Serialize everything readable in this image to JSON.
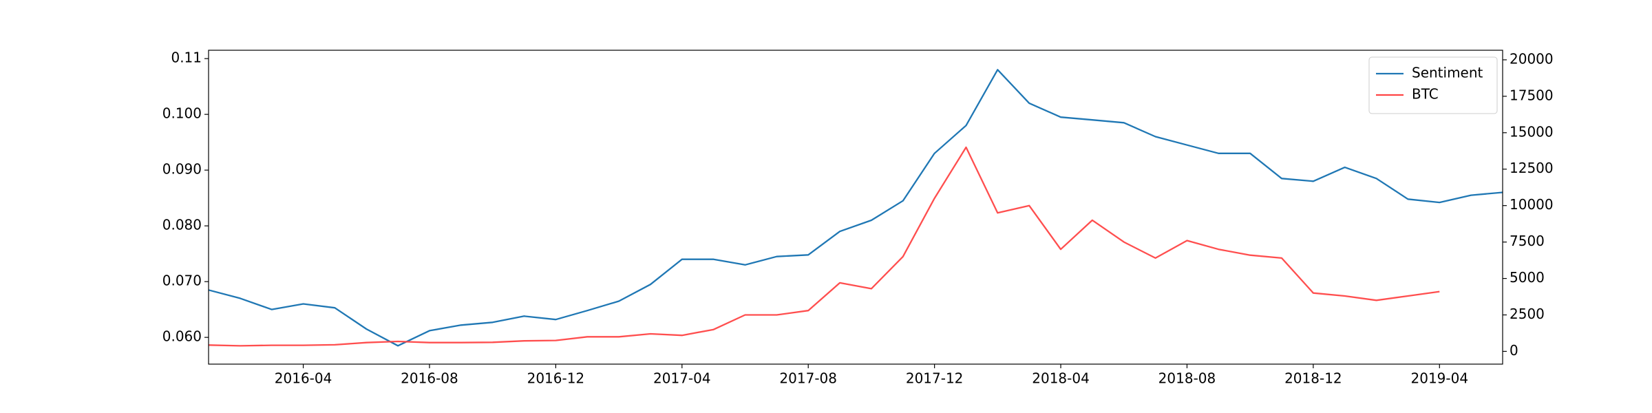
{
  "chart_data": {
    "type": "line",
    "x": [
      "2016-01",
      "2016-02",
      "2016-03",
      "2016-04",
      "2016-05",
      "2016-06",
      "2016-07",
      "2016-08",
      "2016-09",
      "2016-10",
      "2016-11",
      "2016-12",
      "2017-01",
      "2017-02",
      "2017-03",
      "2017-04",
      "2017-05",
      "2017-06",
      "2017-07",
      "2017-08",
      "2017-09",
      "2017-10",
      "2017-11",
      "2017-12",
      "2018-01",
      "2018-02",
      "2018-03",
      "2018-04",
      "2018-05",
      "2018-06",
      "2018-07",
      "2018-08",
      "2018-09",
      "2018-10",
      "2018-11",
      "2018-12",
      "2019-01",
      "2019-02",
      "2019-03",
      "2019-04",
      "2019-05",
      "2019-06"
    ],
    "series": [
      {
        "name": "Sentiment",
        "color": "#1f77b4",
        "axis": "y",
        "values": [
          0.0685,
          0.067,
          0.065,
          0.066,
          0.0653,
          0.0615,
          0.0585,
          0.0612,
          0.0622,
          0.0627,
          0.0638,
          0.0632,
          0.0648,
          0.0665,
          0.0695,
          0.074,
          0.074,
          0.073,
          0.0745,
          0.0748,
          0.079,
          0.081,
          0.0845,
          0.093,
          0.098,
          0.108,
          0.102,
          0.0995,
          0.099,
          0.0985,
          0.096,
          0.0945,
          0.093,
          0.093,
          0.0885,
          0.088,
          0.0905,
          0.0885,
          0.0848,
          0.0842,
          0.0855,
          0.086
        ]
      },
      {
        "name": "BTC",
        "color": "#ff4444",
        "axis": "y2",
        "values": [
          430,
          380,
          420,
          420,
          450,
          600,
          680,
          600,
          600,
          620,
          720,
          750,
          1000,
          1000,
          1200,
          1100,
          1500,
          2500,
          2500,
          2800,
          4700,
          4300,
          6500,
          10500,
          14000,
          9500,
          10000,
          7000,
          9000,
          7500,
          6400,
          7600,
          7000,
          6600,
          6400,
          4000,
          3800,
          3500,
          3800,
          4100,
          null,
          null
        ]
      }
    ],
    "xlim": [
      "2016-01",
      "2019-06"
    ],
    "xticks": [
      "2016-04",
      "2016-08",
      "2016-12",
      "2017-04",
      "2017-08",
      "2017-12",
      "2018-04",
      "2018-08",
      "2018-12",
      "2019-04"
    ],
    "ylim": [
      0.0552,
      0.1115
    ],
    "yticks": [
      {
        "value": 0.06,
        "label": "0.060"
      },
      {
        "value": 0.07,
        "label": "0.070"
      },
      {
        "value": 0.08,
        "label": "0.080"
      },
      {
        "value": 0.09,
        "label": "0.090"
      },
      {
        "value": 0.1,
        "label": "0.100"
      },
      0.11
    ],
    "y2lim": [
      -876,
      20657
    ],
    "y2ticks": [
      0,
      2500,
      5000,
      7500,
      10000,
      12500,
      15000,
      17500,
      20000
    ],
    "legend": "upper right"
  }
}
